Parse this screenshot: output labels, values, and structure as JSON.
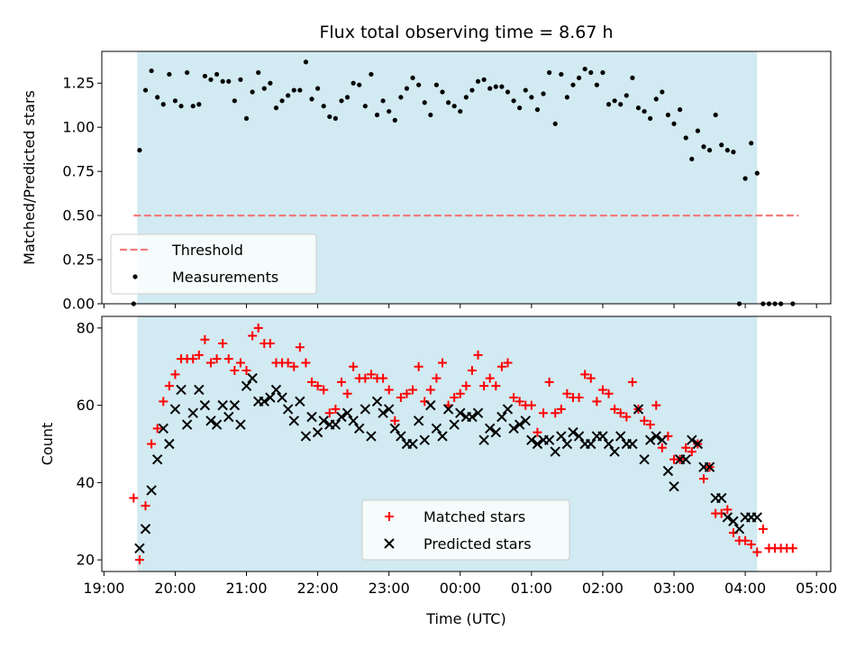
{
  "colors": {
    "observing_band": "#add8e6",
    "threshold": "#f07b7b",
    "measurements": "#000000",
    "matched": "#ff0000",
    "predicted": "#000000"
  },
  "chart_data": [
    {
      "type": "scatter",
      "title": "Flux total observing time = 8.67 h",
      "xlabel": "",
      "ylabel": "Matched/Predicted stars",
      "x_unit": "hours from 19:00 UTC",
      "xlim": [
        18.97,
        29.2
      ],
      "ylim": [
        0,
        1.43
      ],
      "yticks": [
        0.0,
        0.25,
        0.5,
        0.75,
        1.0,
        1.25
      ],
      "ytick_labels": [
        "0.00",
        "0.25",
        "0.50",
        "0.75",
        "1.00",
        "1.25"
      ],
      "observing_window": [
        "19:28",
        "04:10"
      ],
      "legend_position": "lower-left",
      "legend": [
        {
          "label": "Threshold",
          "marker": "dashed-line"
        },
        {
          "label": "Measurements",
          "marker": "dot"
        }
      ],
      "threshold": {
        "value": 0.5,
        "x_range": [
          "19:25",
          "04:45"
        ]
      },
      "measurements": [
        [
          "19:25",
          0.0
        ],
        [
          "19:30",
          0.87
        ],
        [
          "19:35",
          1.21
        ],
        [
          "19:40",
          1.32
        ],
        [
          "19:45",
          1.17
        ],
        [
          "19:50",
          1.13
        ],
        [
          "19:55",
          1.3
        ],
        [
          "20:00",
          1.15
        ],
        [
          "20:05",
          1.12
        ],
        [
          "20:10",
          1.31
        ],
        [
          "20:15",
          1.12
        ],
        [
          "20:20",
          1.13
        ],
        [
          "20:25",
          1.29
        ],
        [
          "20:30",
          1.27
        ],
        [
          "20:35",
          1.3
        ],
        [
          "20:40",
          1.26
        ],
        [
          "20:45",
          1.26
        ],
        [
          "20:50",
          1.15
        ],
        [
          "20:55",
          1.27
        ],
        [
          "21:00",
          1.05
        ],
        [
          "21:05",
          1.2
        ],
        [
          "21:10",
          1.31
        ],
        [
          "21:15",
          1.22
        ],
        [
          "21:20",
          1.25
        ],
        [
          "21:25",
          1.11
        ],
        [
          "21:30",
          1.15
        ],
        [
          "21:35",
          1.18
        ],
        [
          "21:40",
          1.21
        ],
        [
          "21:45",
          1.21
        ],
        [
          "21:50",
          1.37
        ],
        [
          "21:55",
          1.16
        ],
        [
          "22:00",
          1.22
        ],
        [
          "22:05",
          1.12
        ],
        [
          "22:10",
          1.06
        ],
        [
          "22:15",
          1.05
        ],
        [
          "22:20",
          1.15
        ],
        [
          "22:25",
          1.17
        ],
        [
          "22:30",
          1.25
        ],
        [
          "22:35",
          1.24
        ],
        [
          "22:40",
          1.12
        ],
        [
          "22:45",
          1.3
        ],
        [
          "22:50",
          1.07
        ],
        [
          "22:55",
          1.15
        ],
        [
          "23:00",
          1.09
        ],
        [
          "23:05",
          1.04
        ],
        [
          "23:10",
          1.17
        ],
        [
          "23:15",
          1.22
        ],
        [
          "23:20",
          1.28
        ],
        [
          "23:25",
          1.24
        ],
        [
          "23:30",
          1.14
        ],
        [
          "23:35",
          1.07
        ],
        [
          "23:40",
          1.24
        ],
        [
          "23:45",
          1.2
        ],
        [
          "23:50",
          1.14
        ],
        [
          "23:55",
          1.12
        ],
        [
          "00:00",
          1.09
        ],
        [
          "00:05",
          1.17
        ],
        [
          "00:10",
          1.21
        ],
        [
          "00:15",
          1.26
        ],
        [
          "00:20",
          1.27
        ],
        [
          "00:25",
          1.22
        ],
        [
          "00:30",
          1.23
        ],
        [
          "00:35",
          1.23
        ],
        [
          "00:40",
          1.2
        ],
        [
          "00:45",
          1.15
        ],
        [
          "00:50",
          1.11
        ],
        [
          "00:55",
          1.21
        ],
        [
          "01:00",
          1.17
        ],
        [
          "01:05",
          1.1
        ],
        [
          "01:10",
          1.19
        ],
        [
          "01:15",
          1.31
        ],
        [
          "01:20",
          1.02
        ],
        [
          "01:25",
          1.3
        ],
        [
          "01:30",
          1.17
        ],
        [
          "01:35",
          1.24
        ],
        [
          "01:40",
          1.28
        ],
        [
          "01:45",
          1.33
        ],
        [
          "01:50",
          1.31
        ],
        [
          "01:55",
          1.24
        ],
        [
          "02:00",
          1.31
        ],
        [
          "02:05",
          1.13
        ],
        [
          "02:10",
          1.15
        ],
        [
          "02:15",
          1.13
        ],
        [
          "02:20",
          1.18
        ],
        [
          "02:25",
          1.28
        ],
        [
          "02:30",
          1.11
        ],
        [
          "02:35",
          1.09
        ],
        [
          "02:40",
          1.05
        ],
        [
          "02:45",
          1.16
        ],
        [
          "02:50",
          1.2
        ],
        [
          "02:55",
          1.07
        ],
        [
          "03:00",
          1.02
        ],
        [
          "03:05",
          1.1
        ],
        [
          "03:10",
          0.94
        ],
        [
          "03:15",
          0.82
        ],
        [
          "03:20",
          0.98
        ],
        [
          "03:25",
          0.89
        ],
        [
          "03:30",
          0.87
        ],
        [
          "03:35",
          1.07
        ],
        [
          "03:40",
          0.9
        ],
        [
          "03:45",
          0.87
        ],
        [
          "03:50",
          0.86
        ],
        [
          "03:55",
          0.0
        ],
        [
          "04:00",
          0.71
        ],
        [
          "04:05",
          0.91
        ],
        [
          "04:10",
          0.74
        ],
        [
          "04:15",
          0.0
        ],
        [
          "04:20",
          0.0
        ],
        [
          "04:25",
          0.0
        ],
        [
          "04:30",
          0.0
        ],
        [
          "04:40",
          0.0
        ]
      ]
    },
    {
      "type": "scatter",
      "title": "",
      "xlabel": "Time (UTC)",
      "ylabel": "Count",
      "x_unit": "hours from 19:00 UTC",
      "xlim": [
        18.97,
        29.2
      ],
      "ylim": [
        17,
        83
      ],
      "yticks": [
        20,
        40,
        60,
        80
      ],
      "ytick_labels": [
        "20",
        "40",
        "60",
        "80"
      ],
      "xticks": [
        19,
        20,
        21,
        22,
        23,
        24,
        25,
        26,
        27,
        28,
        29
      ],
      "xtick_labels": [
        "19:00",
        "20:00",
        "21:00",
        "22:00",
        "23:00",
        "00:00",
        "01:00",
        "02:00",
        "03:00",
        "04:00",
        "05:00"
      ],
      "observing_window": [
        "19:28",
        "04:10"
      ],
      "legend_position": "lower-center",
      "legend": [
        {
          "label": "Matched stars",
          "marker": "plus"
        },
        {
          "label": "Predicted stars",
          "marker": "x"
        }
      ],
      "matched": [
        [
          "19:25",
          36
        ],
        [
          "19:30",
          20
        ],
        [
          "19:35",
          34
        ],
        [
          "19:40",
          50
        ],
        [
          "19:45",
          54
        ],
        [
          "19:50",
          61
        ],
        [
          "19:55",
          65
        ],
        [
          "20:00",
          68
        ],
        [
          "20:05",
          72
        ],
        [
          "20:10",
          72
        ],
        [
          "20:15",
          72
        ],
        [
          "20:20",
          73
        ],
        [
          "20:25",
          77
        ],
        [
          "20:30",
          71
        ],
        [
          "20:35",
          72
        ],
        [
          "20:40",
          76
        ],
        [
          "20:45",
          72
        ],
        [
          "20:50",
          69
        ],
        [
          "20:55",
          71
        ],
        [
          "21:00",
          69
        ],
        [
          "21:05",
          78
        ],
        [
          "21:10",
          80
        ],
        [
          "21:15",
          76
        ],
        [
          "21:20",
          76
        ],
        [
          "21:25",
          71
        ],
        [
          "21:30",
          71
        ],
        [
          "21:35",
          71
        ],
        [
          "21:40",
          70
        ],
        [
          "21:45",
          75
        ],
        [
          "21:50",
          71
        ],
        [
          "21:55",
          66
        ],
        [
          "22:00",
          65
        ],
        [
          "22:05",
          64
        ],
        [
          "22:10",
          58
        ],
        [
          "22:15",
          59
        ],
        [
          "22:20",
          66
        ],
        [
          "22:25",
          63
        ],
        [
          "22:30",
          70
        ],
        [
          "22:35",
          67
        ],
        [
          "22:40",
          67
        ],
        [
          "22:45",
          68
        ],
        [
          "22:50",
          67
        ],
        [
          "22:55",
          67
        ],
        [
          "23:00",
          64
        ],
        [
          "23:05",
          56
        ],
        [
          "23:10",
          62
        ],
        [
          "23:15",
          63
        ],
        [
          "23:20",
          64
        ],
        [
          "23:25",
          70
        ],
        [
          "23:30",
          61
        ],
        [
          "23:35",
          64
        ],
        [
          "23:40",
          67
        ],
        [
          "23:45",
          71
        ],
        [
          "23:50",
          60
        ],
        [
          "23:55",
          62
        ],
        [
          "00:00",
          63
        ],
        [
          "00:05",
          65
        ],
        [
          "00:10",
          69
        ],
        [
          "00:15",
          73
        ],
        [
          "00:20",
          65
        ],
        [
          "00:25",
          67
        ],
        [
          "00:30",
          65
        ],
        [
          "00:35",
          70
        ],
        [
          "00:40",
          71
        ],
        [
          "00:45",
          62
        ],
        [
          "00:50",
          61
        ],
        [
          "00:55",
          60
        ],
        [
          "01:00",
          60
        ],
        [
          "01:05",
          53
        ],
        [
          "01:10",
          58
        ],
        [
          "01:15",
          66
        ],
        [
          "01:20",
          58
        ],
        [
          "01:25",
          59
        ],
        [
          "01:30",
          63
        ],
        [
          "01:35",
          62
        ],
        [
          "01:40",
          62
        ],
        [
          "01:45",
          68
        ],
        [
          "01:50",
          67
        ],
        [
          "01:55",
          61
        ],
        [
          "02:00",
          64
        ],
        [
          "02:05",
          63
        ],
        [
          "02:10",
          59
        ],
        [
          "02:15",
          58
        ],
        [
          "02:20",
          57
        ],
        [
          "02:25",
          66
        ],
        [
          "02:30",
          59
        ],
        [
          "02:35",
          56
        ],
        [
          "02:40",
          55
        ],
        [
          "02:45",
          60
        ],
        [
          "02:50",
          49
        ],
        [
          "02:55",
          52
        ],
        [
          "03:00",
          46
        ],
        [
          "03:05",
          46
        ],
        [
          "03:10",
          49
        ],
        [
          "03:15",
          48
        ],
        [
          "03:20",
          50
        ],
        [
          "03:25",
          41
        ],
        [
          "03:30",
          44
        ],
        [
          "03:35",
          32
        ],
        [
          "03:40",
          32
        ],
        [
          "03:45",
          33
        ],
        [
          "03:50",
          27
        ],
        [
          "03:55",
          25
        ],
        [
          "04:00",
          25
        ],
        [
          "04:05",
          24
        ],
        [
          "04:10",
          22
        ],
        [
          "04:15",
          28
        ],
        [
          "04:20",
          23
        ],
        [
          "04:25",
          23
        ],
        [
          "04:30",
          23
        ],
        [
          "04:35",
          23
        ],
        [
          "04:40",
          23
        ]
      ],
      "predicted": [
        [
          "19:30",
          23
        ],
        [
          "19:35",
          28
        ],
        [
          "19:40",
          38
        ],
        [
          "19:45",
          46
        ],
        [
          "19:50",
          54
        ],
        [
          "19:55",
          50
        ],
        [
          "20:00",
          59
        ],
        [
          "20:05",
          64
        ],
        [
          "20:10",
          55
        ],
        [
          "20:15",
          58
        ],
        [
          "20:20",
          64
        ],
        [
          "20:25",
          60
        ],
        [
          "20:30",
          56
        ],
        [
          "20:35",
          55
        ],
        [
          "20:40",
          60
        ],
        [
          "20:45",
          57
        ],
        [
          "20:50",
          60
        ],
        [
          "20:55",
          55
        ],
        [
          "21:00",
          65
        ],
        [
          "21:05",
          67
        ],
        [
          "21:10",
          61
        ],
        [
          "21:15",
          61
        ],
        [
          "21:20",
          62
        ],
        [
          "21:25",
          64
        ],
        [
          "21:30",
          62
        ],
        [
          "21:35",
          59
        ],
        [
          "21:40",
          56
        ],
        [
          "21:45",
          61
        ],
        [
          "21:50",
          52
        ],
        [
          "21:55",
          57
        ],
        [
          "22:00",
          53
        ],
        [
          "22:05",
          56
        ],
        [
          "22:10",
          55
        ],
        [
          "22:15",
          55
        ],
        [
          "22:20",
          57
        ],
        [
          "22:25",
          58
        ],
        [
          "22:30",
          56
        ],
        [
          "22:35",
          54
        ],
        [
          "22:40",
          59
        ],
        [
          "22:45",
          52
        ],
        [
          "22:50",
          61
        ],
        [
          "22:55",
          58
        ],
        [
          "23:00",
          59
        ],
        [
          "23:05",
          54
        ],
        [
          "23:10",
          52
        ],
        [
          "23:15",
          50
        ],
        [
          "23:20",
          50
        ],
        [
          "23:25",
          56
        ],
        [
          "23:30",
          51
        ],
        [
          "23:35",
          60
        ],
        [
          "23:40",
          54
        ],
        [
          "23:45",
          52
        ],
        [
          "23:50",
          59
        ],
        [
          "23:55",
          55
        ],
        [
          "00:00",
          58
        ],
        [
          "00:05",
          57
        ],
        [
          "00:10",
          57
        ],
        [
          "00:15",
          58
        ],
        [
          "00:20",
          51
        ],
        [
          "00:25",
          54
        ],
        [
          "00:30",
          53
        ],
        [
          "00:35",
          57
        ],
        [
          "00:40",
          59
        ],
        [
          "00:45",
          54
        ],
        [
          "00:50",
          55
        ],
        [
          "00:55",
          56
        ],
        [
          "01:00",
          51
        ],
        [
          "01:05",
          50
        ],
        [
          "01:10",
          51
        ],
        [
          "01:15",
          51
        ],
        [
          "01:20",
          48
        ],
        [
          "01:25",
          52
        ],
        [
          "01:30",
          50
        ],
        [
          "01:35",
          53
        ],
        [
          "01:40",
          52
        ],
        [
          "01:45",
          50
        ],
        [
          "01:50",
          50
        ],
        [
          "01:55",
          52
        ],
        [
          "02:00",
          52
        ],
        [
          "02:05",
          50
        ],
        [
          "02:10",
          48
        ],
        [
          "02:15",
          52
        ],
        [
          "02:20",
          50
        ],
        [
          "02:25",
          50
        ],
        [
          "02:30",
          59
        ],
        [
          "02:35",
          46
        ],
        [
          "02:40",
          51
        ],
        [
          "02:45",
          52
        ],
        [
          "02:50",
          51
        ],
        [
          "02:55",
          43
        ],
        [
          "03:00",
          39
        ],
        [
          "03:05",
          46
        ],
        [
          "03:10",
          46
        ],
        [
          "03:15",
          51
        ],
        [
          "03:20",
          50
        ],
        [
          "03:25",
          44
        ],
        [
          "03:30",
          44
        ],
        [
          "03:35",
          36
        ],
        [
          "03:40",
          36
        ],
        [
          "03:45",
          31
        ],
        [
          "03:50",
          30
        ],
        [
          "03:55",
          28
        ],
        [
          "04:00",
          31
        ],
        [
          "04:05",
          31
        ],
        [
          "04:10",
          31
        ]
      ]
    }
  ]
}
